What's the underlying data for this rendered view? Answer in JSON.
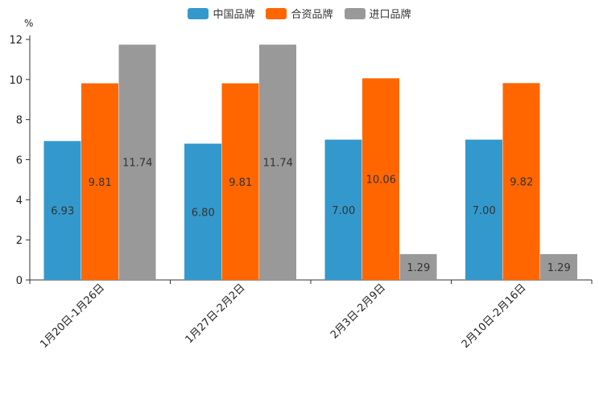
{
  "chart_data": {
    "type": "bar",
    "title": "",
    "ylabel": "%",
    "ylim": [
      0,
      12
    ],
    "yticks": [
      "0",
      "2",
      "4",
      "6",
      "8",
      "10",
      "12"
    ],
    "categories": [
      "1月20日-1月26日",
      "1月27日-2月2日",
      "2月3日-2月9日",
      "2月10日-2月16日"
    ],
    "series": [
      {
        "name": "中国品牌",
        "color": "#3399cc",
        "values": [
          6.93,
          6.8,
          7.0,
          7.0
        ],
        "labels": [
          "6.93",
          "6.80",
          "7.00",
          "7.00"
        ]
      },
      {
        "name": "合资品牌",
        "color": "#ff6600",
        "values": [
          9.81,
          9.81,
          10.06,
          9.82
        ],
        "labels": [
          "9.81",
          "9.81",
          "10.06",
          "9.82"
        ]
      },
      {
        "name": "进口品牌",
        "color": "#999999",
        "values": [
          11.74,
          11.74,
          1.29,
          1.29
        ],
        "labels": [
          "11.74",
          "11.74",
          "1.29",
          "1.29"
        ]
      }
    ],
    "legend_position": "top-center",
    "grid": false
  }
}
